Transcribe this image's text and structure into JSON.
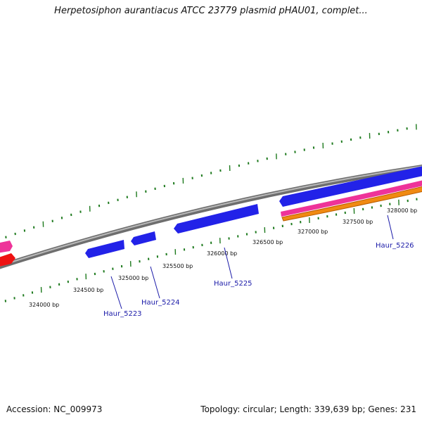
{
  "title": "Herpetosiphon aurantiacus ATCC 23779 plasmid pHAU01, complet...",
  "footer": {
    "accession": "Accession: NC_009973",
    "topology": "Topology: circular; Length: 339,639 bp; Genes: 231"
  },
  "colors": {
    "backbone": "#808080",
    "ticks": "#1e7a1e",
    "gene_forward": "#1e1ee6",
    "gene_reverse": "#ee1111",
    "pink_track": "#ee3399",
    "orange_track": "#ee8811",
    "label": "#1a1aa8"
  },
  "axis": {
    "tick_labels": [
      "324000 bp",
      "324500 bp",
      "325000 bp",
      "325500 bp",
      "326000 bp",
      "326500 bp",
      "327000 bp",
      "327500 bp",
      "328000 bp"
    ]
  },
  "genes": [
    {
      "name": "Haur_5223"
    },
    {
      "name": "Haur_5224"
    },
    {
      "name": "Haur_5225"
    },
    {
      "name": "Haur_5226"
    }
  ]
}
